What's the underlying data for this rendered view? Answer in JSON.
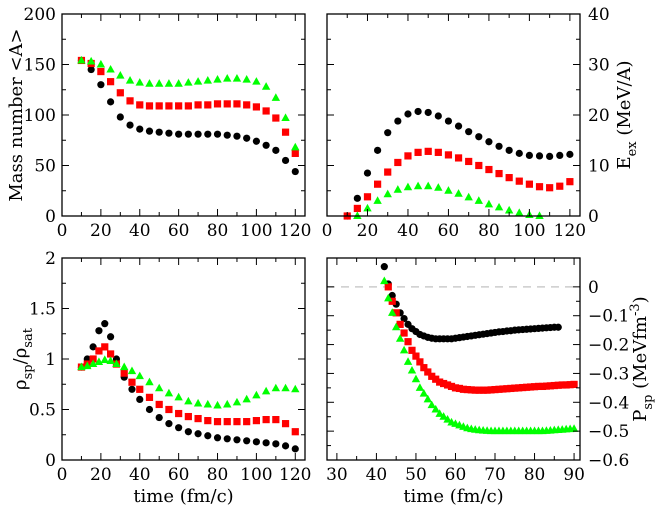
{
  "chart_data": [
    {
      "id": "p1",
      "type": "scatter",
      "xlabel": "",
      "ylabel": "Mass number <A>",
      "xlim": [
        0,
        125
      ],
      "ylim": [
        0,
        200
      ],
      "xticks": [
        "0",
        "20",
        "40",
        "60",
        "80",
        "100",
        "120"
      ],
      "yticks": [
        "0",
        "50",
        "100",
        "150",
        "200"
      ],
      "series": [
        {
          "name": "black",
          "color": "#000000",
          "marker": "circle",
          "x": [
            10,
            15,
            20,
            25,
            30,
            35,
            40,
            45,
            50,
            55,
            60,
            65,
            70,
            75,
            80,
            85,
            90,
            95,
            100,
            105,
            110,
            115,
            120
          ],
          "y": [
            154,
            145,
            130,
            113,
            98,
            90,
            86,
            84,
            83,
            82,
            81,
            81,
            81,
            81,
            81,
            80,
            79,
            77,
            74,
            70,
            65,
            55,
            44
          ]
        },
        {
          "name": "red",
          "color": "#ff0000",
          "marker": "square",
          "x": [
            10,
            15,
            20,
            25,
            30,
            35,
            40,
            45,
            50,
            55,
            60,
            65,
            70,
            75,
            80,
            85,
            90,
            95,
            100,
            105,
            110,
            115,
            120
          ],
          "y": [
            154,
            151,
            143,
            133,
            122,
            114,
            110,
            109,
            109,
            109,
            109,
            109,
            110,
            110,
            111,
            111,
            111,
            110,
            108,
            104,
            97,
            83,
            62
          ]
        },
        {
          "name": "green",
          "color": "#00ff00",
          "marker": "triangle",
          "x": [
            10,
            15,
            20,
            25,
            30,
            35,
            40,
            45,
            50,
            55,
            60,
            65,
            70,
            75,
            80,
            85,
            90,
            95,
            100,
            105,
            110,
            115,
            120
          ],
          "y": [
            154,
            153,
            150,
            145,
            139,
            134,
            132,
            131,
            131,
            131,
            131,
            132,
            133,
            134,
            135,
            136,
            136,
            135,
            133,
            128,
            117,
            97,
            68
          ]
        }
      ]
    },
    {
      "id": "p2",
      "type": "scatter",
      "xlabel": "",
      "ylabel": "E_ex (MeV/A)",
      "xlim": [
        0,
        125
      ],
      "ylim": [
        0,
        40
      ],
      "xticks": [
        "0",
        "20",
        "40",
        "60",
        "80",
        "100",
        "120"
      ],
      "yticks": [
        "0",
        "10",
        "20",
        "30",
        "40"
      ],
      "series": [
        {
          "name": "black",
          "color": "#000000",
          "marker": "circle",
          "x": [
            10,
            15,
            20,
            25,
            30,
            35,
            40,
            45,
            50,
            55,
            60,
            65,
            70,
            75,
            80,
            85,
            90,
            95,
            100,
            105,
            110,
            115,
            120
          ],
          "y": [
            0,
            3.5,
            8.5,
            13,
            16.5,
            18.8,
            20.2,
            20.7,
            20.5,
            19.8,
            18.8,
            17.8,
            16.7,
            15.7,
            14.7,
            13.8,
            13.0,
            12.4,
            12.0,
            11.9,
            11.8,
            12.0,
            12.2
          ]
        },
        {
          "name": "red",
          "color": "#ff0000",
          "marker": "square",
          "x": [
            10,
            15,
            20,
            25,
            30,
            35,
            40,
            45,
            50,
            55,
            60,
            65,
            70,
            75,
            80,
            85,
            90,
            95,
            100,
            105,
            110,
            115,
            120
          ],
          "y": [
            0,
            1.5,
            3.8,
            6.3,
            8.7,
            10.6,
            11.9,
            12.6,
            12.8,
            12.6,
            12.1,
            11.5,
            10.8,
            10.0,
            9.2,
            8.4,
            7.6,
            6.9,
            6.3,
            5.8,
            5.6,
            5.9,
            6.8
          ]
        },
        {
          "name": "green",
          "color": "#00ff00",
          "marker": "triangle",
          "x": [
            15,
            20,
            25,
            30,
            35,
            40,
            45,
            50,
            55,
            60,
            65,
            70,
            75,
            80,
            85,
            90,
            95,
            100,
            105
          ],
          "y": [
            0,
            1.5,
            3.0,
            4.3,
            5.2,
            5.7,
            5.9,
            5.9,
            5.6,
            5.0,
            4.4,
            3.7,
            3.0,
            2.3,
            1.7,
            1.1,
            0.6,
            0.2,
            0
          ]
        }
      ]
    },
    {
      "id": "p3",
      "type": "scatter",
      "xlabel": "time (fm/c)",
      "ylabel": "ρsp/ρsat",
      "xlim": [
        0,
        125
      ],
      "ylim": [
        0,
        2
      ],
      "xticks": [
        "0",
        "20",
        "40",
        "60",
        "80",
        "100",
        "120"
      ],
      "yticks": [
        "0",
        "0.5",
        "1",
        "1.5",
        "2"
      ],
      "series": [
        {
          "name": "black",
          "color": "#000000",
          "marker": "circle",
          "x": [
            10,
            13,
            16,
            19,
            22,
            25,
            28,
            32,
            36,
            40,
            45,
            50,
            55,
            60,
            65,
            70,
            75,
            80,
            85,
            90,
            95,
            100,
            105,
            110,
            115,
            120
          ],
          "y": [
            0.92,
            1.0,
            1.12,
            1.28,
            1.35,
            1.22,
            1.0,
            0.82,
            0.7,
            0.6,
            0.5,
            0.42,
            0.36,
            0.32,
            0.28,
            0.26,
            0.24,
            0.22,
            0.21,
            0.2,
            0.19,
            0.18,
            0.17,
            0.16,
            0.14,
            0.11
          ]
        },
        {
          "name": "red",
          "color": "#ff0000",
          "marker": "square",
          "x": [
            10,
            13,
            16,
            19,
            22,
            25,
            28,
            32,
            36,
            40,
            45,
            50,
            55,
            60,
            65,
            70,
            75,
            80,
            85,
            90,
            95,
            100,
            105,
            110,
            115,
            120
          ],
          "y": [
            0.92,
            0.95,
            1.0,
            1.08,
            1.12,
            1.05,
            0.95,
            0.86,
            0.77,
            0.7,
            0.62,
            0.55,
            0.5,
            0.46,
            0.43,
            0.41,
            0.39,
            0.38,
            0.38,
            0.38,
            0.38,
            0.39,
            0.4,
            0.4,
            0.36,
            0.28
          ]
        },
        {
          "name": "green",
          "color": "#00ff00",
          "marker": "triangle",
          "x": [
            10,
            13,
            16,
            19,
            22,
            25,
            28,
            32,
            36,
            40,
            45,
            50,
            55,
            60,
            65,
            70,
            75,
            80,
            85,
            90,
            95,
            100,
            105,
            110,
            115,
            120
          ],
          "y": [
            0.92,
            0.93,
            0.95,
            0.97,
            0.99,
            0.98,
            0.95,
            0.92,
            0.88,
            0.83,
            0.77,
            0.71,
            0.66,
            0.62,
            0.58,
            0.56,
            0.55,
            0.54,
            0.55,
            0.57,
            0.6,
            0.64,
            0.68,
            0.71,
            0.71,
            0.7
          ]
        }
      ]
    },
    {
      "id": "p4",
      "type": "scatter",
      "xlabel": "time (fm/c)",
      "ylabel": "Psp (MeVfm-3)",
      "xlim": [
        27.5,
        91.5
      ],
      "ylim": [
        -0.6,
        0.1
      ],
      "xticks": [
        "30",
        "40",
        "50",
        "60",
        "70",
        "80",
        "90"
      ],
      "yticks": [
        "0",
        "-0.1",
        "-0.2",
        "-0.3",
        "-0.4",
        "-0.5",
        "-0.6"
      ],
      "reference_line": 0,
      "series": [
        {
          "name": "black",
          "color": "#000000",
          "marker": "circle",
          "x": [
            42,
            43,
            44,
            45,
            46,
            47,
            48,
            49,
            50,
            51,
            52,
            53,
            54,
            55,
            56,
            57,
            58,
            59,
            60,
            61,
            62,
            63,
            64,
            65,
            66,
            67,
            68,
            69,
            70,
            71,
            72,
            73,
            74,
            75,
            76,
            77,
            78,
            79,
            80,
            81,
            82,
            83,
            84,
            85,
            86
          ],
          "y": [
            0.07,
            0.01,
            -0.03,
            -0.06,
            -0.09,
            -0.11,
            -0.13,
            -0.145,
            -0.155,
            -0.165,
            -0.17,
            -0.175,
            -0.178,
            -0.18,
            -0.18,
            -0.18,
            -0.18,
            -0.18,
            -0.178,
            -0.176,
            -0.174,
            -0.172,
            -0.17,
            -0.168,
            -0.166,
            -0.164,
            -0.162,
            -0.16,
            -0.158,
            -0.156,
            -0.155,
            -0.153,
            -0.152,
            -0.15,
            -0.149,
            -0.148,
            -0.147,
            -0.146,
            -0.145,
            -0.144,
            -0.143,
            -0.142,
            -0.141,
            -0.14,
            -0.14
          ]
        },
        {
          "name": "red",
          "color": "#ff0000",
          "marker": "square",
          "x": [
            43,
            44,
            45,
            46,
            47,
            48,
            49,
            50,
            51,
            52,
            53,
            54,
            55,
            56,
            57,
            58,
            59,
            60,
            61,
            62,
            63,
            64,
            65,
            66,
            67,
            68,
            69,
            70,
            71,
            72,
            73,
            74,
            75,
            76,
            77,
            78,
            79,
            80,
            81,
            82,
            83,
            84,
            85,
            86,
            87,
            88,
            89,
            90
          ],
          "y": [
            0.0,
            -0.05,
            -0.09,
            -0.13,
            -0.16,
            -0.19,
            -0.22,
            -0.24,
            -0.26,
            -0.28,
            -0.295,
            -0.31,
            -0.32,
            -0.33,
            -0.335,
            -0.34,
            -0.345,
            -0.35,
            -0.352,
            -0.355,
            -0.356,
            -0.357,
            -0.358,
            -0.358,
            -0.358,
            -0.358,
            -0.357,
            -0.356,
            -0.355,
            -0.354,
            -0.353,
            -0.352,
            -0.351,
            -0.35,
            -0.349,
            -0.348,
            -0.347,
            -0.346,
            -0.345,
            -0.345,
            -0.344,
            -0.343,
            -0.342,
            -0.341,
            -0.34,
            -0.34,
            -0.339,
            -0.338
          ]
        },
        {
          "name": "green",
          "color": "#00ff00",
          "marker": "triangle",
          "x": [
            42,
            43,
            44,
            45,
            46,
            47,
            48,
            49,
            50,
            51,
            52,
            53,
            54,
            55,
            56,
            57,
            58,
            59,
            60,
            61,
            62,
            63,
            64,
            65,
            66,
            67,
            68,
            69,
            70,
            71,
            72,
            73,
            74,
            75,
            76,
            77,
            78,
            79,
            80,
            81,
            82,
            83,
            84,
            85,
            86,
            87,
            88,
            89,
            90
          ],
          "y": [
            0.02,
            -0.04,
            -0.09,
            -0.14,
            -0.18,
            -0.22,
            -0.26,
            -0.29,
            -0.32,
            -0.35,
            -0.37,
            -0.39,
            -0.41,
            -0.425,
            -0.44,
            -0.45,
            -0.46,
            -0.47,
            -0.475,
            -0.48,
            -0.485,
            -0.49,
            -0.493,
            -0.495,
            -0.497,
            -0.498,
            -0.499,
            -0.5,
            -0.5,
            -0.5,
            -0.5,
            -0.5,
            -0.5,
            -0.5,
            -0.5,
            -0.5,
            -0.5,
            -0.5,
            -0.5,
            -0.5,
            -0.5,
            -0.499,
            -0.498,
            -0.497,
            -0.496,
            -0.495,
            -0.494,
            -0.493,
            -0.492
          ]
        }
      ]
    }
  ]
}
